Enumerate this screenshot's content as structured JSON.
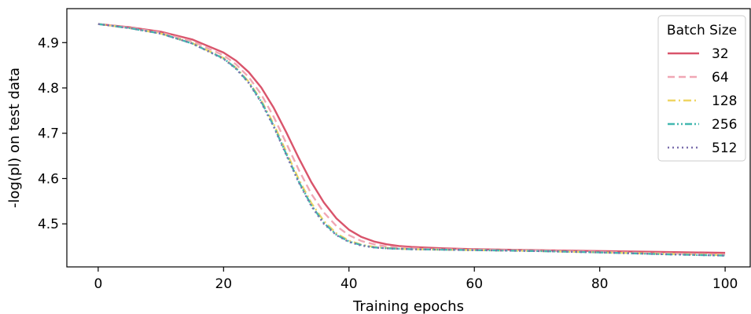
{
  "chart_data": {
    "type": "line",
    "title": "",
    "xlabel": "Training epochs",
    "ylabel": "-log(pl) on test data",
    "xlim": [
      -5,
      104
    ],
    "ylim": [
      4.405,
      4.975
    ],
    "xticks": [
      0,
      20,
      40,
      60,
      80,
      100
    ],
    "yticks": [
      4.5,
      4.6,
      4.7,
      4.8,
      4.9
    ],
    "xtick_labels": [
      "0",
      "20",
      "40",
      "60",
      "80",
      "100"
    ],
    "ytick_labels": [
      "4.5",
      "4.6",
      "4.7",
      "4.8",
      "4.9"
    ],
    "grid": false,
    "legend": {
      "title": "Batch Size",
      "placement": "top-right"
    },
    "series": [
      {
        "name": "32",
        "color": "#d9546b",
        "dash": "solid",
        "x": [
          0,
          5,
          10,
          15,
          20,
          22,
          24,
          26,
          28,
          30,
          32,
          34,
          36,
          38,
          40,
          42,
          44,
          46,
          48,
          50,
          55,
          60,
          70,
          80,
          90,
          100
        ],
        "y": [
          4.941,
          4.934,
          4.924,
          4.907,
          4.878,
          4.86,
          4.835,
          4.801,
          4.756,
          4.702,
          4.645,
          4.592,
          4.547,
          4.512,
          4.487,
          4.471,
          4.461,
          4.455,
          4.451,
          4.449,
          4.446,
          4.444,
          4.442,
          4.44,
          4.438,
          4.436
        ]
      },
      {
        "name": "64",
        "color": "#f0a7b4",
        "dash": "dashed",
        "x": [
          0,
          5,
          10,
          15,
          20,
          22,
          24,
          26,
          28,
          30,
          32,
          34,
          36,
          38,
          40,
          42,
          44,
          46,
          48,
          50,
          55,
          60,
          70,
          80,
          90,
          100
        ],
        "y": [
          4.941,
          4.933,
          4.922,
          4.903,
          4.872,
          4.852,
          4.824,
          4.786,
          4.736,
          4.678,
          4.619,
          4.566,
          4.525,
          4.495,
          4.475,
          4.462,
          4.455,
          4.45,
          4.448,
          4.446,
          4.444,
          4.443,
          4.441,
          4.438,
          4.435,
          4.432
        ]
      },
      {
        "name": "128",
        "color": "#efd562",
        "dash": "dashdot",
        "x": [
          0,
          5,
          10,
          15,
          20,
          22,
          24,
          26,
          28,
          30,
          32,
          34,
          36,
          38,
          40,
          42,
          44,
          46,
          48,
          50,
          55,
          60,
          70,
          80,
          90,
          100
        ],
        "y": [
          4.941,
          4.932,
          4.92,
          4.899,
          4.866,
          4.844,
          4.814,
          4.773,
          4.72,
          4.659,
          4.598,
          4.546,
          4.506,
          4.479,
          4.463,
          4.454,
          4.449,
          4.447,
          4.445,
          4.444,
          4.443,
          4.442,
          4.44,
          4.437,
          4.434,
          4.431
        ]
      },
      {
        "name": "256",
        "color": "#43b8b0",
        "dash": "dashdotdot",
        "x": [
          0,
          5,
          10,
          15,
          20,
          22,
          24,
          26,
          28,
          30,
          32,
          34,
          36,
          38,
          40,
          42,
          44,
          46,
          48,
          50,
          55,
          60,
          70,
          80,
          90,
          100
        ],
        "y": [
          4.941,
          4.932,
          4.92,
          4.898,
          4.865,
          4.843,
          4.812,
          4.77,
          4.716,
          4.654,
          4.593,
          4.541,
          4.502,
          4.476,
          4.461,
          4.453,
          4.448,
          4.446,
          4.445,
          4.444,
          4.443,
          4.442,
          4.44,
          4.437,
          4.433,
          4.43
        ]
      },
      {
        "name": "512",
        "color": "#7b6fad",
        "dash": "dotted",
        "x": [
          0,
          5,
          10,
          15,
          20,
          22,
          24,
          26,
          28,
          30,
          32,
          34,
          36,
          38,
          40,
          42,
          44,
          46,
          48,
          50,
          55,
          60,
          70,
          80,
          90,
          100
        ],
        "y": [
          4.941,
          4.932,
          4.92,
          4.898,
          4.864,
          4.842,
          4.811,
          4.768,
          4.714,
          4.652,
          4.591,
          4.539,
          4.5,
          4.475,
          4.46,
          4.452,
          4.448,
          4.446,
          4.445,
          4.444,
          4.443,
          4.442,
          4.44,
          4.437,
          4.433,
          4.43
        ]
      }
    ]
  }
}
